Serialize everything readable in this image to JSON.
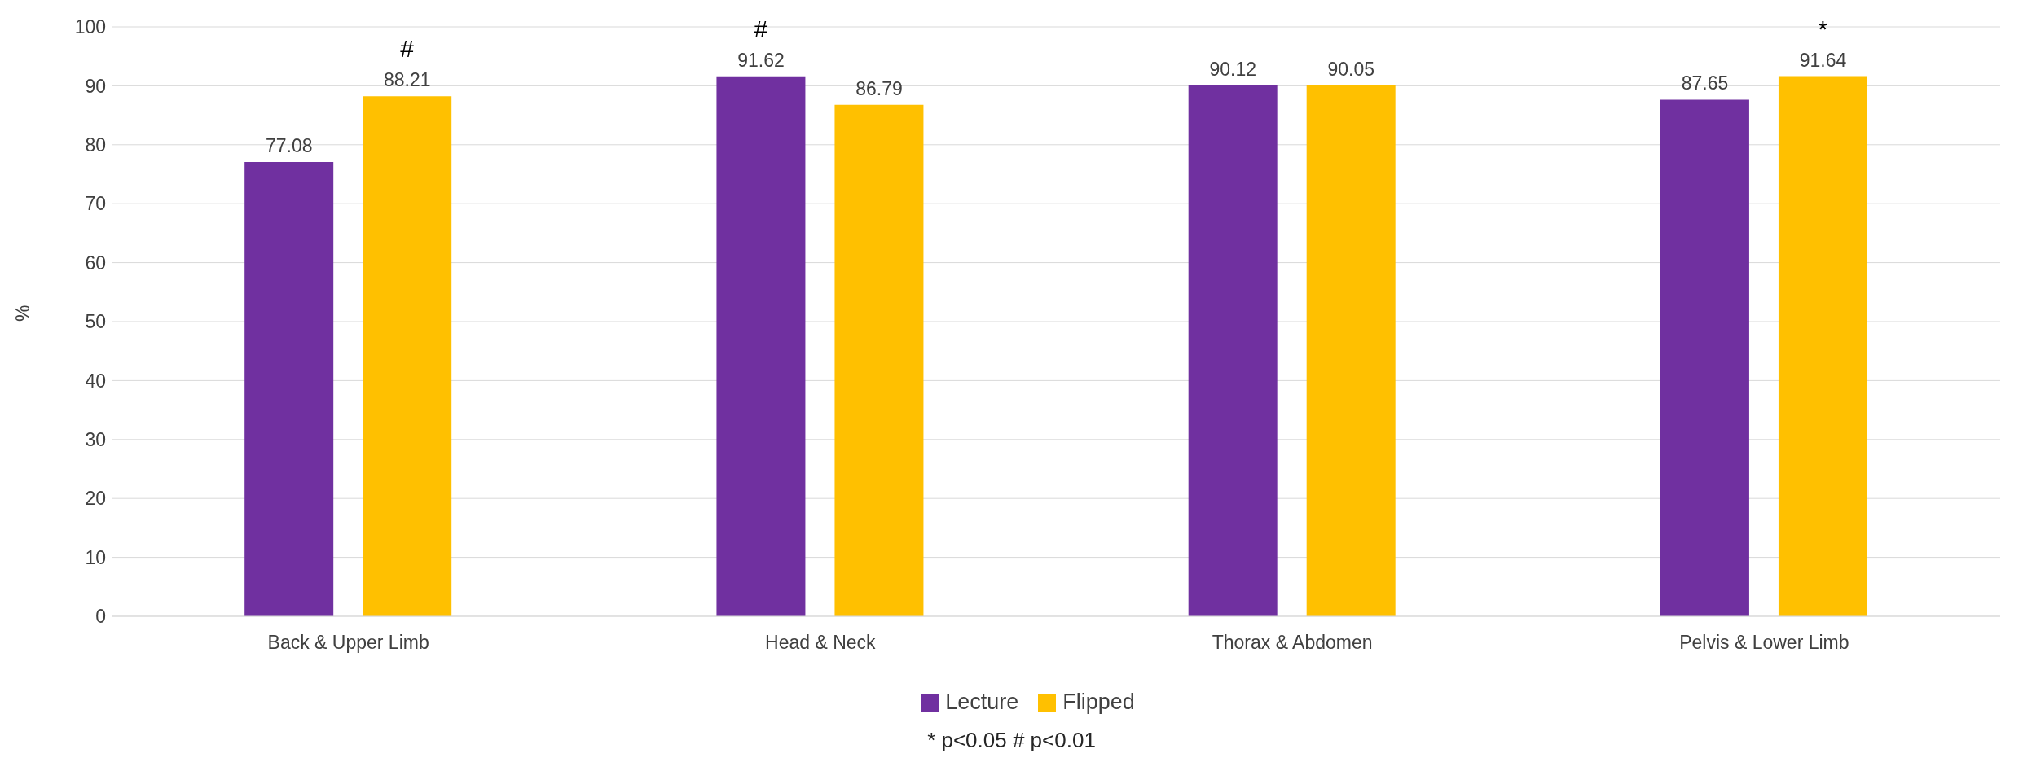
{
  "chart_data": {
    "type": "bar",
    "ylabel": "%",
    "categories": [
      "Back & Upper Limb",
      "Head & Neck",
      "Thorax & Abdomen",
      "Pelvis & Lower Limb"
    ],
    "series": [
      {
        "name": "Lecture",
        "color": "#7030a0",
        "values": [
          77.08,
          91.62,
          90.12,
          87.65
        ]
      },
      {
        "name": "Flipped",
        "color": "#ffc000",
        "values": [
          88.21,
          86.79,
          90.05,
          91.64
        ]
      }
    ],
    "ylim": [
      0,
      100
    ],
    "yticks": [
      0,
      10,
      20,
      30,
      40,
      50,
      60,
      70,
      80,
      90,
      100
    ],
    "grid": "y",
    "legend": "bottom",
    "data_labels": true,
    "annotations": [
      "#",
      "#",
      "*",
      "* p<0.05  # p<0.01"
    ]
  }
}
